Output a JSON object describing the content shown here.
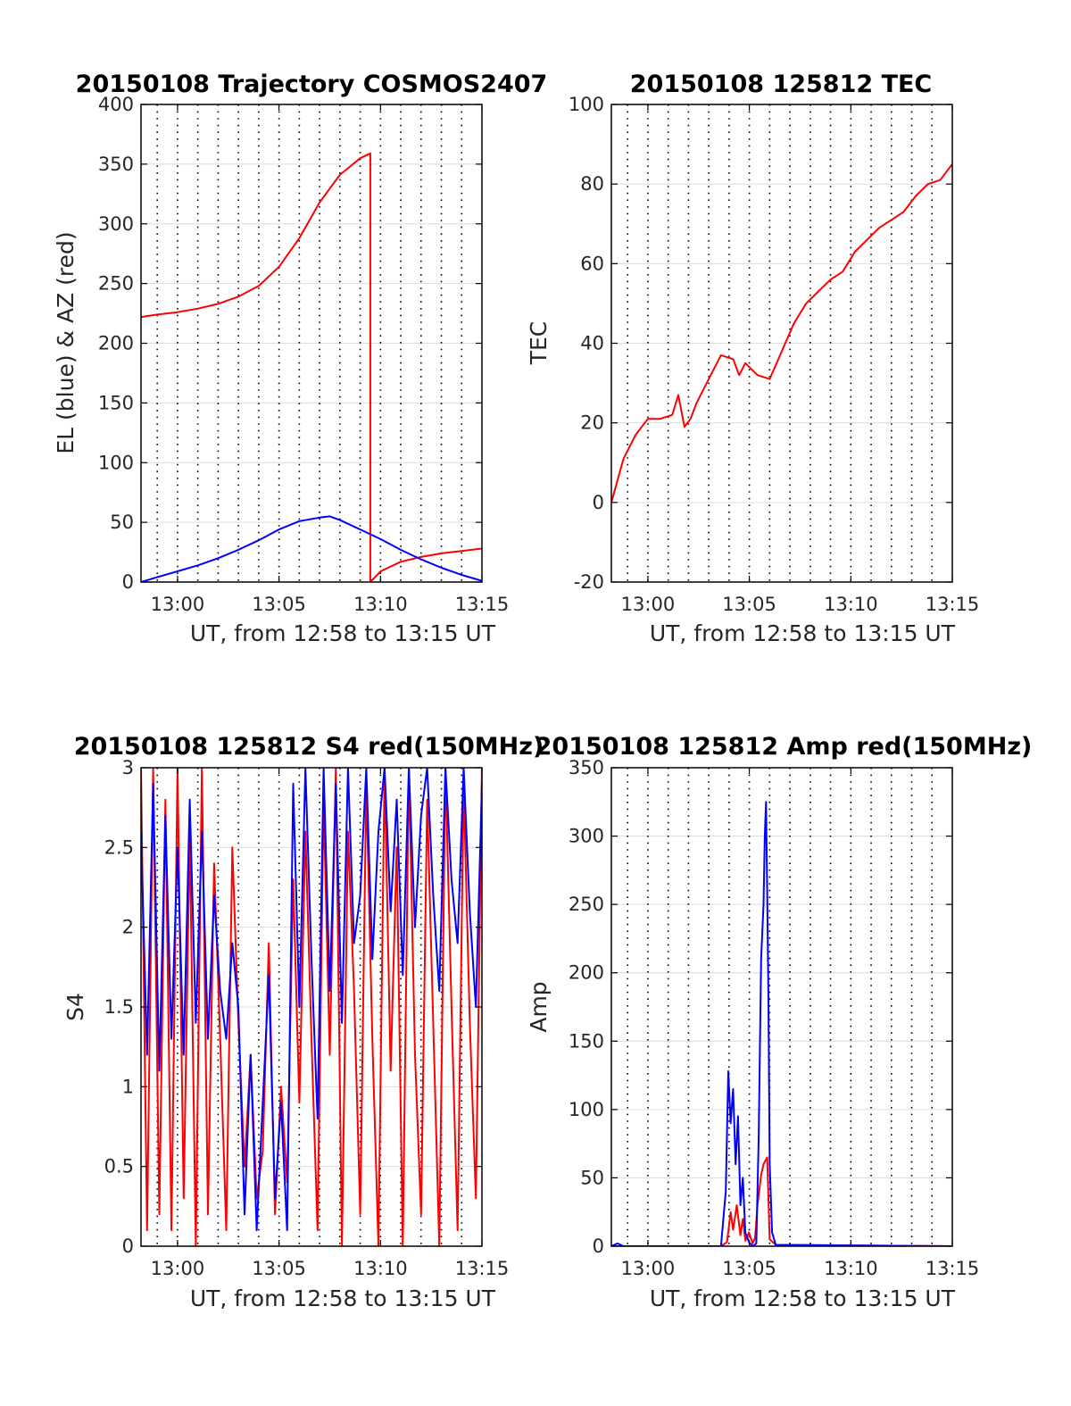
{
  "colors": {
    "red_series": "#ff0000",
    "blue_series": "#0000ff",
    "grid_h": "#dcdcdc",
    "grid_v": "#000000",
    "axes": "#000000"
  },
  "chart_data": [
    {
      "id": "trajectory",
      "type": "line",
      "title": "20150108 Trajectory COSMOS2407",
      "xlabel": "UT, from 12:58 to 13:15 UT",
      "ylabel": "EL (blue) & AZ (red)",
      "xlim": [
        12.97,
        13.25
      ],
      "ylim": [
        0,
        400
      ],
      "x_ticks": [
        {
          "t": 13.0,
          "label": "13:00"
        },
        {
          "t": 13.0833,
          "label": "13:05"
        },
        {
          "t": 13.1667,
          "label": "13:10"
        },
        {
          "t": 13.25,
          "label": "13:15"
        }
      ],
      "y_ticks": [
        0,
        50,
        100,
        150,
        200,
        250,
        300,
        350,
        400
      ],
      "y_tick_labels": [
        "0",
        "50",
        "100",
        "150",
        "200",
        "250",
        "300",
        "350",
        "400"
      ],
      "grid": "horizontal light, vertical dotted every minute",
      "series": [
        {
          "color": "#ff0000",
          "x": [
            12.97,
            12.9833,
            13.0,
            13.0167,
            13.0333,
            13.05,
            13.0667,
            13.0833,
            13.1,
            13.1167,
            13.1333,
            13.15,
            13.1583,
            13.1583,
            13.1667,
            13.1833,
            13.2,
            13.2167,
            13.2333,
            13.25
          ],
          "values": [
            222,
            224,
            226,
            229,
            233,
            239,
            248,
            264,
            288,
            318,
            341,
            355,
            359,
            0,
            9,
            17,
            21,
            24,
            26,
            28
          ]
        },
        {
          "color": "#0000ff",
          "x": [
            12.97,
            12.9833,
            13.0,
            13.0167,
            13.0333,
            13.05,
            13.0667,
            13.0833,
            13.1,
            13.1167,
            13.125,
            13.1333,
            13.15,
            13.1667,
            13.1833,
            13.2,
            13.2167,
            13.2333,
            13.25
          ],
          "values": [
            0,
            4,
            9,
            14,
            20,
            27,
            35,
            44,
            51,
            54,
            55,
            52,
            44,
            36,
            27,
            19,
            12,
            6,
            1
          ]
        }
      ]
    },
    {
      "id": "tec",
      "type": "line",
      "title": "20150108 125812 TEC",
      "xlabel": "UT, from 12:58 to 13:15 UT",
      "ylabel": "TEC",
      "xlim": [
        12.97,
        13.25
      ],
      "ylim": [
        -20,
        100
      ],
      "x_ticks": [
        {
          "t": 13.0,
          "label": "13:00"
        },
        {
          "t": 13.0833,
          "label": "13:05"
        },
        {
          "t": 13.1667,
          "label": "13:10"
        },
        {
          "t": 13.25,
          "label": "13:15"
        }
      ],
      "y_ticks": [
        -20,
        0,
        20,
        40,
        60,
        80,
        100
      ],
      "y_tick_labels": [
        "-20",
        "0",
        "20",
        "40",
        "60",
        "80",
        "100"
      ],
      "grid": "horizontal light, vertical dotted every minute",
      "series": [
        {
          "color": "#ff0000",
          "x": [
            12.97,
            12.98,
            12.99,
            13.0,
            13.01,
            13.02,
            13.025,
            13.03,
            13.035,
            13.04,
            13.05,
            13.06,
            13.07,
            13.075,
            13.08,
            13.09,
            13.1,
            13.11,
            13.12,
            13.13,
            13.14,
            13.15,
            13.16,
            13.17,
            13.18,
            13.19,
            13.2,
            13.21,
            13.22,
            13.23,
            13.24,
            13.25
          ],
          "values": [
            0,
            11,
            17,
            21,
            21,
            22,
            27,
            19,
            21,
            25,
            31,
            37,
            36,
            32,
            35,
            32,
            31,
            38,
            45,
            50,
            53,
            56,
            58,
            63,
            66,
            69,
            71,
            73,
            77,
            80,
            81,
            85
          ]
        }
      ]
    },
    {
      "id": "s4",
      "type": "line",
      "title": "20150108 125812 S4 red(150MHz)",
      "xlabel": "UT, from 12:58 to 13:15 UT",
      "ylabel": "S4",
      "xlim": [
        12.97,
        13.25
      ],
      "ylim": [
        0,
        3
      ],
      "x_ticks": [
        {
          "t": 13.0,
          "label": "13:00"
        },
        {
          "t": 13.0833,
          "label": "13:05"
        },
        {
          "t": 13.1667,
          "label": "13:10"
        },
        {
          "t": 13.25,
          "label": "13:15"
        }
      ],
      "y_ticks": [
        0,
        0.5,
        1,
        1.5,
        2,
        2.5,
        3
      ],
      "y_tick_labels": [
        "0",
        "0.5",
        "1",
        "1.5",
        "2",
        "2.5",
        "3"
      ],
      "grid": "horizontal light, vertical dotted every minute",
      "series": [
        {
          "color": "#ff0000",
          "x": [
            12.97,
            12.975,
            12.98,
            12.985,
            12.99,
            12.995,
            13.0,
            13.005,
            13.01,
            13.015,
            13.02,
            13.025,
            13.03,
            13.035,
            13.04,
            13.045,
            13.05,
            13.055,
            13.06,
            13.065,
            13.07,
            13.075,
            13.08,
            13.085,
            13.09,
            13.095,
            13.1,
            13.105,
            13.11,
            13.115,
            13.12,
            13.125,
            13.13,
            13.135,
            13.14,
            13.145,
            13.15,
            13.155,
            13.16,
            13.165,
            13.17,
            13.175,
            13.18,
            13.185,
            13.19,
            13.195,
            13.2,
            13.205,
            13.21,
            13.215,
            13.22,
            13.225,
            13.23,
            13.235,
            13.24,
            13.245,
            13.25
          ],
          "values": [
            3,
            0.1,
            3,
            0.2,
            2.8,
            0.1,
            3,
            0.3,
            2.6,
            0,
            3,
            0.2,
            2.4,
            1.3,
            0.1,
            2.5,
            1.4,
            0.5,
            1.2,
            0.3,
            0.6,
            1.9,
            0.2,
            1.0,
            0.4,
            2.3,
            0.9,
            2.6,
            1.3,
            0.1,
            2.8,
            1.2,
            3,
            0,
            2.6,
            1.6,
            0.2,
            2.9,
            1.3,
            0,
            3,
            1.1,
            2.5,
            0,
            3,
            1.2,
            0.2,
            2.8,
            1.4,
            0,
            3,
            1.5,
            0.1,
            2.9,
            1.4,
            0.3,
            3
          ]
        },
        {
          "color": "#0000ff",
          "x": [
            12.97,
            12.975,
            12.98,
            12.985,
            12.99,
            12.995,
            13.0,
            13.005,
            13.01,
            13.015,
            13.02,
            13.025,
            13.03,
            13.035,
            13.04,
            13.045,
            13.05,
            13.055,
            13.06,
            13.065,
            13.07,
            13.075,
            13.08,
            13.085,
            13.09,
            13.095,
            13.1,
            13.105,
            13.11,
            13.115,
            13.12,
            13.125,
            13.13,
            13.135,
            13.14,
            13.145,
            13.15,
            13.155,
            13.16,
            13.165,
            13.17,
            13.175,
            13.18,
            13.185,
            13.19,
            13.195,
            13.2,
            13.205,
            13.21,
            13.215,
            13.22,
            13.225,
            13.23,
            13.235,
            13.24,
            13.245,
            13.25
          ],
          "values": [
            2.6,
            1.2,
            2.9,
            1.1,
            2.7,
            1.3,
            2.5,
            1.2,
            2.8,
            1.4,
            2.6,
            1.3,
            2.2,
            1.6,
            1.3,
            1.9,
            1.5,
            0.2,
            1.2,
            0.1,
            0.9,
            1.7,
            0.3,
            0.9,
            0.1,
            2.9,
            1.5,
            3,
            1.8,
            0.8,
            3,
            1.6,
            2.9,
            1.4,
            3,
            1.9,
            2.2,
            3,
            1.8,
            2.6,
            3,
            2.1,
            2.8,
            1.7,
            3,
            2.0,
            2.7,
            3,
            2.2,
            1.6,
            3,
            2.3,
            1.9,
            3,
            2.1,
            1.5,
            2.9
          ]
        }
      ]
    },
    {
      "id": "amp",
      "type": "line",
      "title": "20150108 125812 Amp red(150MHz)",
      "xlabel": "UT, from 12:58 to 13:15 UT",
      "ylabel": "Amp",
      "xlim": [
        12.97,
        13.25
      ],
      "ylim": [
        0,
        350
      ],
      "x_ticks": [
        {
          "t": 13.0,
          "label": "13:00"
        },
        {
          "t": 13.0833,
          "label": "13:05"
        },
        {
          "t": 13.1667,
          "label": "13:10"
        },
        {
          "t": 13.25,
          "label": "13:15"
        }
      ],
      "y_ticks": [
        0,
        50,
        100,
        150,
        200,
        250,
        300,
        350
      ],
      "y_tick_labels": [
        "0",
        "50",
        "100",
        "150",
        "200",
        "250",
        "300",
        "350"
      ],
      "grid": "horizontal light, vertical dotted every minute",
      "series": [
        {
          "color": "#ff0000",
          "x": [
            12.97,
            13.06,
            13.065,
            13.068,
            13.07,
            13.073,
            13.076,
            13.078,
            13.08,
            13.083,
            13.086,
            13.088,
            13.09,
            13.093,
            13.095,
            13.098,
            13.1,
            13.105,
            13.25
          ],
          "values": [
            0,
            0,
            3,
            25,
            12,
            30,
            8,
            20,
            4,
            10,
            2,
            6,
            30,
            52,
            60,
            65,
            5,
            1,
            0
          ]
        },
        {
          "color": "#0000ff",
          "x": [
            12.97,
            12.975,
            12.98,
            13.06,
            13.064,
            13.066,
            13.068,
            13.07,
            13.072,
            13.074,
            13.076,
            13.078,
            13.08,
            13.083,
            13.086,
            13.089,
            13.091,
            13.093,
            13.095,
            13.096,
            13.097,
            13.098,
            13.099,
            13.1,
            13.102,
            13.105,
            13.25
          ],
          "values": [
            0,
            2,
            0,
            0,
            40,
            128,
            90,
            115,
            60,
            95,
            30,
            50,
            10,
            3,
            0,
            2,
            80,
            210,
            250,
            300,
            325,
            260,
            180,
            60,
            10,
            1,
            0
          ]
        }
      ]
    }
  ]
}
